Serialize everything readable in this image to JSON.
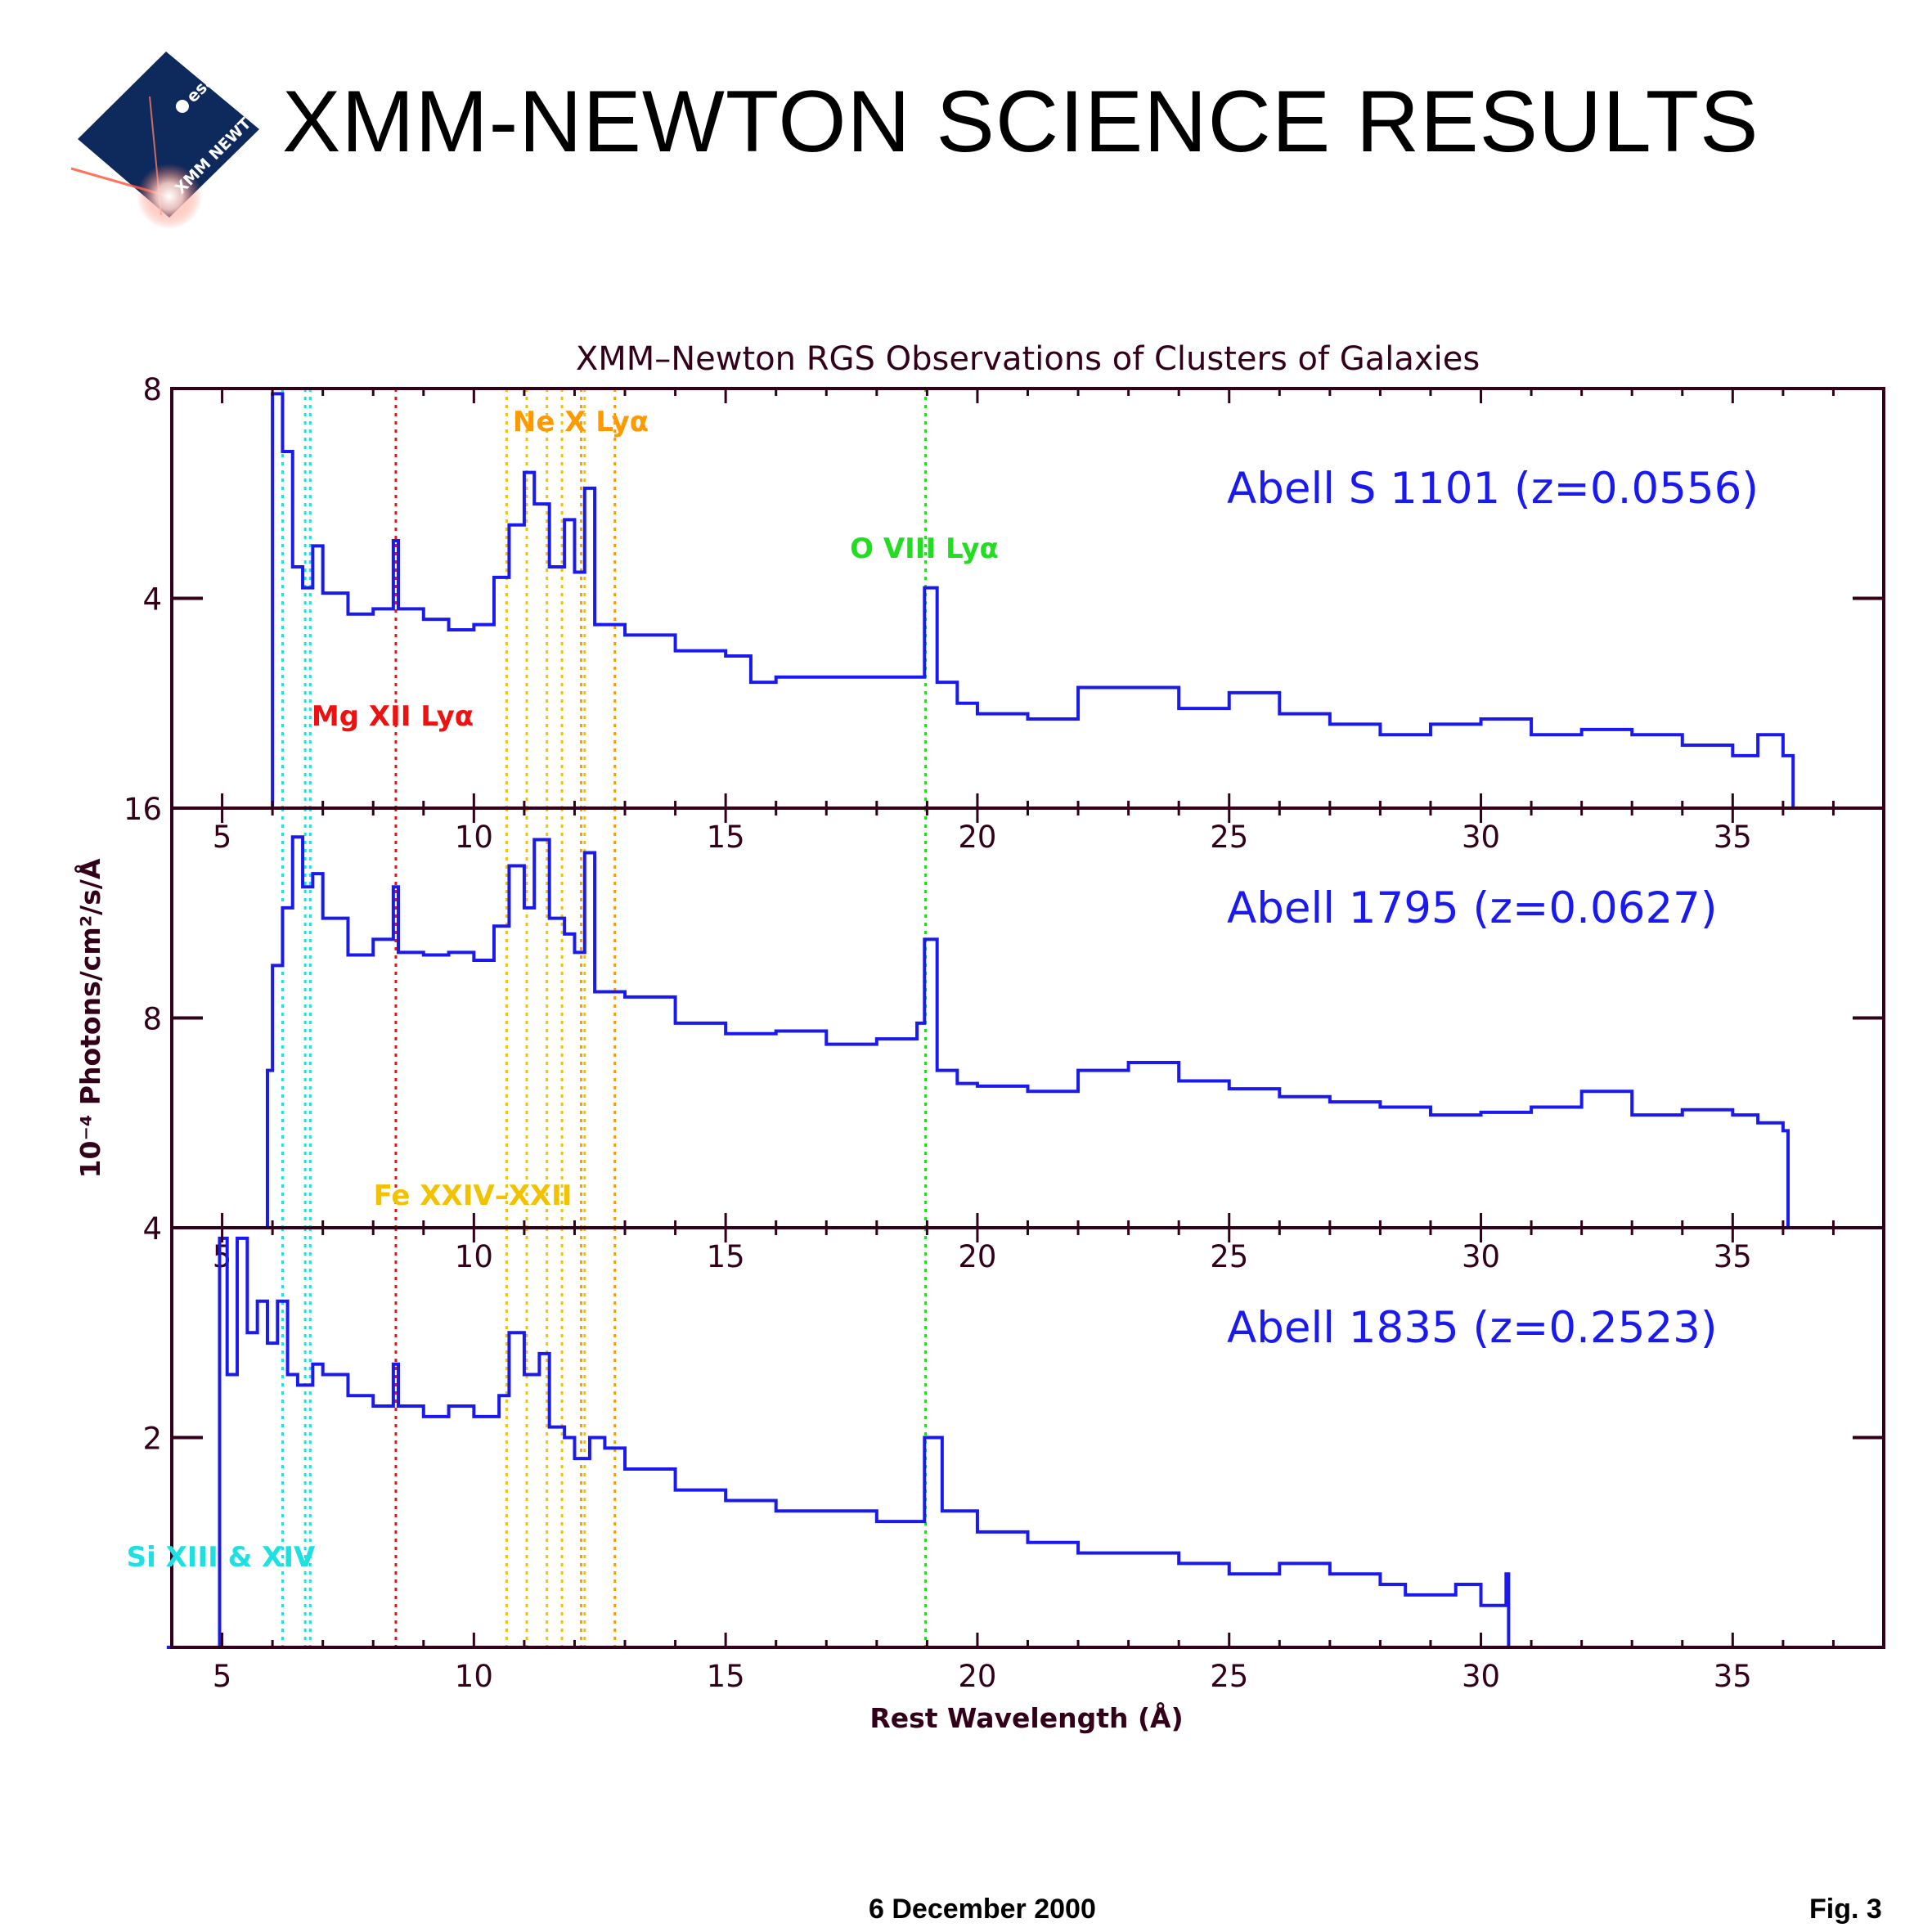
{
  "header": {
    "title": "XMM-NEWTON SCIENCE RESULTS",
    "logo_text_1": "esa",
    "logo_text_2": "XMM NEWTON"
  },
  "footer": {
    "date": "6 December 2000",
    "fig": "Fig. 3"
  },
  "colors": {
    "spectrum": "#1a1aee",
    "frame": "#33001a",
    "cyan": "#1ee0e0",
    "red": "#ee1111",
    "orange": "#ff9900",
    "gold": "#f2c200",
    "green": "#22dd22",
    "logo_bg": "#0e2a5c"
  },
  "chart_data": {
    "type": "line",
    "title": "XMM–Newton RGS Observations of Clusters of Galaxies",
    "xlabel": "Rest Wavelength (Å)",
    "ylabel": "10⁻⁴ Photons/cm²/s/Å",
    "xlim": [
      4,
      38
    ],
    "xticks": [
      5,
      10,
      15,
      20,
      25,
      30,
      35
    ],
    "line_markers": [
      {
        "name": "Si XIII & XIV",
        "color": "cyan",
        "positions": [
          6.2,
          6.65,
          6.75
        ]
      },
      {
        "name": "Mg XII Lyα",
        "color": "red",
        "positions": [
          8.45
        ]
      },
      {
        "name": "Fe XXIV–XXII",
        "color": "gold",
        "positions": [
          10.65,
          11.05,
          11.45,
          11.75,
          12.2
        ]
      },
      {
        "name": "Ne X Lyα",
        "color": "orange",
        "positions": [
          12.13,
          12.8
        ]
      },
      {
        "name": "O VIII Lyα",
        "color": "green",
        "positions": [
          18.97
        ]
      }
    ],
    "panels": [
      {
        "name": "Abell S 1101 (z=0.0556)",
        "ylim": [
          0,
          8
        ],
        "yticks": [
          4,
          8
        ],
        "series": [
          {
            "x": [
              5.8,
              6.0,
              6.2,
              6.4,
              6.6,
              6.8,
              7.0,
              7.5,
              8.0,
              8.4,
              8.5,
              9.0,
              9.5,
              10.0,
              10.4,
              10.7,
              11.0,
              11.2,
              11.5,
              11.8,
              12.0,
              12.2,
              12.4,
              13.0,
              14.0,
              15.0,
              15.5,
              16.0,
              17.0,
              18.0,
              18.8,
              18.95,
              19.2,
              19.6,
              20.0,
              21.0,
              22.0,
              23.0,
              24.0,
              25.0,
              26.0,
              27.0,
              28.0,
              29.0,
              30.0,
              31.0,
              32.0,
              33.0,
              34.0,
              35.0,
              35.5,
              36.0,
              36.2
            ],
            "y": [
              0,
              7.9,
              6.8,
              4.6,
              4.2,
              5.0,
              4.1,
              3.7,
              3.8,
              5.1,
              3.8,
              3.6,
              3.4,
              3.5,
              4.4,
              5.4,
              6.4,
              5.8,
              4.6,
              5.5,
              4.5,
              6.1,
              3.5,
              3.3,
              3.0,
              2.9,
              2.4,
              2.5,
              2.5,
              2.5,
              2.5,
              4.2,
              2.4,
              2.0,
              1.8,
              1.7,
              2.3,
              2.3,
              1.9,
              2.2,
              1.8,
              1.6,
              1.4,
              1.6,
              1.7,
              1.4,
              1.5,
              1.4,
              1.2,
              1.0,
              1.4,
              1.0,
              0
            ]
          }
        ]
      },
      {
        "name": "Abell 1795 (z=0.0627)",
        "ylim": [
          0,
          16
        ],
        "yticks": [
          8,
          16
        ],
        "series": [
          {
            "x": [
              5.7,
              5.9,
              6.0,
              6.2,
              6.4,
              6.6,
              6.8,
              7.0,
              7.5,
              8.0,
              8.4,
              8.5,
              9.0,
              9.5,
              10.0,
              10.4,
              10.7,
              11.0,
              11.2,
              11.5,
              11.8,
              12.0,
              12.2,
              12.4,
              13.0,
              14.0,
              15.0,
              16.0,
              17.0,
              18.0,
              18.8,
              18.95,
              19.2,
              19.6,
              20.0,
              21.0,
              22.0,
              23.0,
              24.0,
              25.0,
              26.0,
              27.0,
              28.0,
              29.0,
              30.0,
              31.0,
              32.0,
              33.0,
              34.0,
              35.0,
              35.5,
              36.0,
              36.1
            ],
            "y": [
              0,
              6.0,
              10.0,
              12.2,
              14.9,
              13.0,
              13.5,
              11.8,
              10.4,
              11.0,
              13.0,
              10.5,
              10.4,
              10.5,
              10.2,
              11.5,
              13.8,
              12.2,
              14.8,
              11.8,
              11.2,
              10.5,
              14.3,
              9.0,
              8.8,
              7.8,
              7.4,
              7.5,
              7.0,
              7.2,
              7.8,
              11.0,
              6.0,
              5.5,
              5.4,
              5.2,
              6.0,
              6.3,
              5.6,
              5.3,
              5.0,
              4.8,
              4.6,
              4.3,
              4.4,
              4.6,
              5.2,
              4.3,
              4.5,
              4.3,
              4.0,
              3.7,
              0
            ]
          }
        ]
      },
      {
        "name": "Abell 1835 (z=0.2523)",
        "ylim": [
          0,
          4
        ],
        "yticks": [
          2,
          4
        ],
        "series": [
          {
            "x": [
              3.9,
              4.85,
              4.95,
              5.1,
              5.3,
              5.5,
              5.7,
              5.9,
              6.1,
              6.3,
              6.5,
              6.8,
              7.0,
              7.5,
              8.0,
              8.4,
              8.5,
              9.0,
              9.5,
              10.0,
              10.5,
              10.7,
              11.0,
              11.3,
              11.5,
              11.8,
              12.0,
              12.3,
              12.6,
              13.0,
              13.5,
              14.0,
              15.0,
              16.0,
              17.0,
              18.0,
              18.8,
              18.95,
              19.3,
              20.0,
              21.0,
              22.0,
              23.0,
              24.0,
              25.0,
              26.0,
              27.0,
              28.0,
              28.5,
              29.0,
              29.5,
              30.0,
              30.5,
              30.55,
              32.0
            ],
            "y": [
              0,
              0,
              3.9,
              2.6,
              3.9,
              3.0,
              3.3,
              2.9,
              3.3,
              2.6,
              2.5,
              2.7,
              2.6,
              2.4,
              2.3,
              2.7,
              2.3,
              2.2,
              2.3,
              2.2,
              2.4,
              3.0,
              2.6,
              2.8,
              2.1,
              2.0,
              1.8,
              2.0,
              1.9,
              1.7,
              1.7,
              1.5,
              1.4,
              1.3,
              1.3,
              1.2,
              1.2,
              2.0,
              1.3,
              1.1,
              1.0,
              0.9,
              0.9,
              0.8,
              0.7,
              0.8,
              0.7,
              0.6,
              0.5,
              0.5,
              0.6,
              0.4,
              0.7,
              0,
              0
            ]
          }
        ]
      }
    ]
  }
}
